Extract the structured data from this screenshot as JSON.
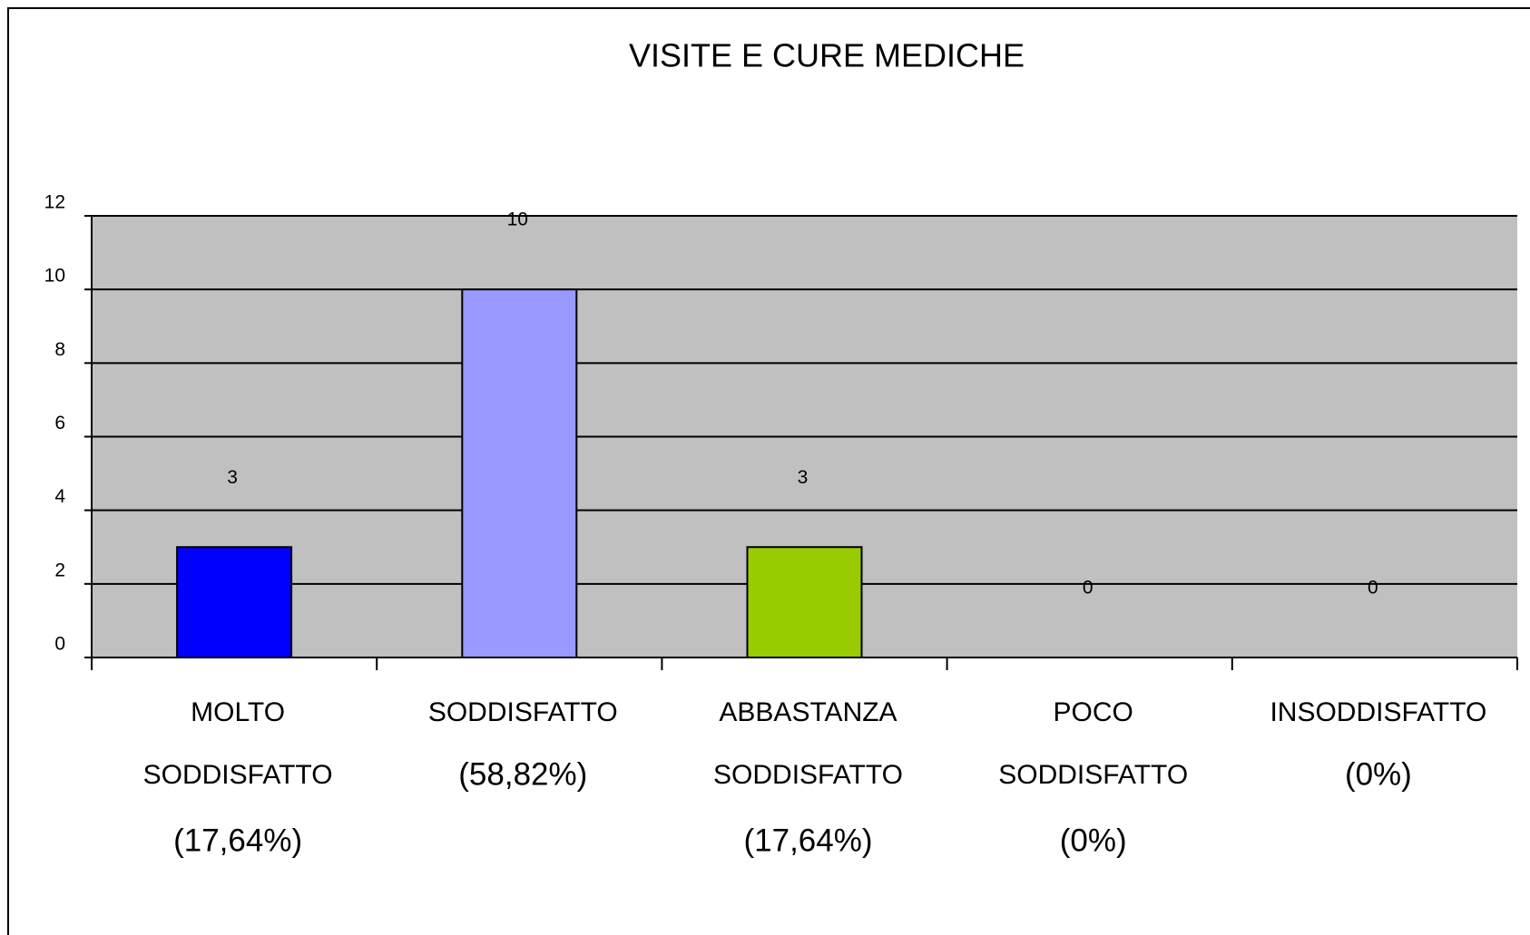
{
  "chart_data": {
    "type": "bar",
    "title": "VISITE E CURE MEDICHE",
    "categories": [
      [
        "MOLTO",
        "SODDISFATTO",
        "(17,64%)"
      ],
      [
        "SODDISFATTO",
        "(58,82%)"
      ],
      [
        "ABBASTANZA",
        "SODDISFATTO",
        "(17,64%)"
      ],
      [
        "POCO",
        "SODDISFATTO",
        "(0%)"
      ],
      [
        "INSODDISFATTO",
        "(0%)"
      ]
    ],
    "values": [
      3,
      10,
      3,
      0,
      0
    ],
    "colors": [
      "#0000ff",
      "#9999ff",
      "#99cc00",
      "#c0c0c0",
      "#c0c0c0"
    ],
    "ylim": [
      0,
      12
    ],
    "yticks": [
      0,
      2,
      4,
      6,
      8,
      10,
      12
    ],
    "grid": true,
    "plot_background": "#c0c0c0"
  }
}
